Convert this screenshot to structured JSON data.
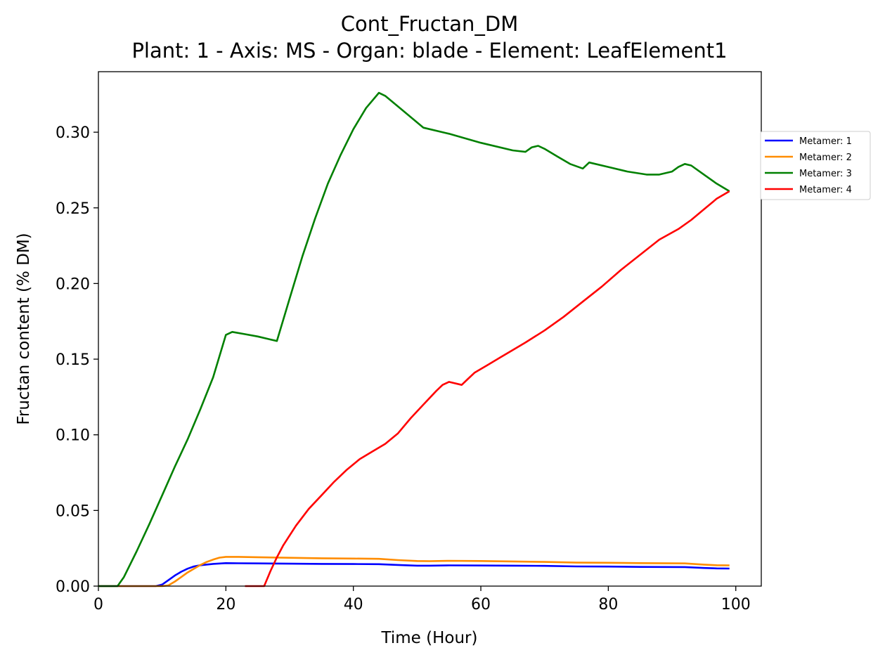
{
  "chart_data": {
    "type": "line",
    "title": "Cont_Fructan_DM",
    "subtitle": "Plant: 1 - Axis: MS - Organ: blade - Element: LeafElement1",
    "xlabel": "Time (Hour)",
    "ylabel": "Fructan content (% DM)",
    "xlim": [
      0,
      104
    ],
    "ylim": [
      0,
      0.34
    ],
    "xticks": [
      0,
      20,
      40,
      60,
      80,
      100
    ],
    "xtick_labels": [
      "0",
      "20",
      "40",
      "60",
      "80",
      "100"
    ],
    "yticks": [
      0.0,
      0.05,
      0.1,
      0.15,
      0.2,
      0.25,
      0.3
    ],
    "ytick_labels": [
      "0.00",
      "0.05",
      "0.10",
      "0.15",
      "0.20",
      "0.25",
      "0.30"
    ],
    "grid": false,
    "legend_position": "right, outside plot",
    "series": [
      {
        "name": "Metamer: 1",
        "color": "#0000ff",
        "points": [
          [
            0,
            0
          ],
          [
            9,
            0
          ],
          [
            10,
            0.001
          ],
          [
            11,
            0.004
          ],
          [
            12,
            0.007
          ],
          [
            13,
            0.0095
          ],
          [
            14,
            0.0115
          ],
          [
            15,
            0.013
          ],
          [
            16,
            0.0138
          ],
          [
            18,
            0.0147
          ],
          [
            20,
            0.0152
          ],
          [
            22,
            0.0151
          ],
          [
            25,
            0.015
          ],
          [
            30,
            0.0148
          ],
          [
            35,
            0.0147
          ],
          [
            40,
            0.0146
          ],
          [
            44,
            0.0145
          ],
          [
            47,
            0.014
          ],
          [
            50,
            0.0135
          ],
          [
            52,
            0.0135
          ],
          [
            55,
            0.0137
          ],
          [
            60,
            0.0136
          ],
          [
            65,
            0.0135
          ],
          [
            70,
            0.0134
          ],
          [
            75,
            0.013
          ],
          [
            80,
            0.0129
          ],
          [
            85,
            0.0127
          ],
          [
            92,
            0.0126
          ],
          [
            95,
            0.012
          ],
          [
            97,
            0.0117
          ],
          [
            99,
            0.0116
          ]
        ]
      },
      {
        "name": "Metamer: 2",
        "color": "#ff8c00",
        "points": [
          [
            0,
            0
          ],
          [
            10,
            0
          ],
          [
            11,
            0.0005
          ],
          [
            12,
            0.003
          ],
          [
            13,
            0.006
          ],
          [
            14,
            0.009
          ],
          [
            15,
            0.0115
          ],
          [
            16,
            0.014
          ],
          [
            17,
            0.016
          ],
          [
            18,
            0.0175
          ],
          [
            19,
            0.0188
          ],
          [
            20,
            0.0193
          ],
          [
            22,
            0.0193
          ],
          [
            25,
            0.0191
          ],
          [
            30,
            0.0187
          ],
          [
            35,
            0.0184
          ],
          [
            40,
            0.0182
          ],
          [
            44,
            0.018
          ],
          [
            47,
            0.0172
          ],
          [
            50,
            0.0166
          ],
          [
            52,
            0.0165
          ],
          [
            55,
            0.0167
          ],
          [
            60,
            0.0166
          ],
          [
            65,
            0.0163
          ],
          [
            70,
            0.016
          ],
          [
            75,
            0.0155
          ],
          [
            80,
            0.0154
          ],
          [
            85,
            0.0152
          ],
          [
            92,
            0.015
          ],
          [
            95,
            0.0142
          ],
          [
            97,
            0.0138
          ],
          [
            99,
            0.0137
          ]
        ]
      },
      {
        "name": "Metamer: 3",
        "color": "#008000",
        "points": [
          [
            0,
            0
          ],
          [
            3,
            0
          ],
          [
            4,
            0.006
          ],
          [
            6,
            0.023
          ],
          [
            8,
            0.041
          ],
          [
            10,
            0.06
          ],
          [
            12,
            0.079
          ],
          [
            14,
            0.097
          ],
          [
            16,
            0.117
          ],
          [
            18,
            0.138
          ],
          [
            20,
            0.166
          ],
          [
            21,
            0.168
          ],
          [
            23,
            0.1665
          ],
          [
            25,
            0.165
          ],
          [
            27,
            0.163
          ],
          [
            28,
            0.162
          ],
          [
            30,
            0.19
          ],
          [
            32,
            0.218
          ],
          [
            34,
            0.243
          ],
          [
            36,
            0.266
          ],
          [
            38,
            0.285
          ],
          [
            40,
            0.302
          ],
          [
            42,
            0.316
          ],
          [
            44,
            0.326
          ],
          [
            45,
            0.324
          ],
          [
            47,
            0.317
          ],
          [
            49,
            0.31
          ],
          [
            51,
            0.303
          ],
          [
            55,
            0.299
          ],
          [
            60,
            0.293
          ],
          [
            65,
            0.288
          ],
          [
            67,
            0.287
          ],
          [
            68,
            0.29
          ],
          [
            69,
            0.291
          ],
          [
            70,
            0.289
          ],
          [
            72,
            0.284
          ],
          [
            74,
            0.279
          ],
          [
            76,
            0.276
          ],
          [
            77,
            0.28
          ],
          [
            80,
            0.277
          ],
          [
            83,
            0.274
          ],
          [
            86,
            0.272
          ],
          [
            88,
            0.272
          ],
          [
            90,
            0.274
          ],
          [
            91,
            0.277
          ],
          [
            92,
            0.279
          ],
          [
            93,
            0.278
          ],
          [
            95,
            0.272
          ],
          [
            97,
            0.266
          ],
          [
            99,
            0.261
          ]
        ]
      },
      {
        "name": "Metamer: 4",
        "color": "#ff0000",
        "points": [
          [
            23,
            0
          ],
          [
            26,
            0
          ],
          [
            27,
            0.01
          ],
          [
            28,
            0.019
          ],
          [
            29,
            0.027
          ],
          [
            31,
            0.04
          ],
          [
            33,
            0.051
          ],
          [
            35,
            0.06
          ],
          [
            37,
            0.069
          ],
          [
            39,
            0.077
          ],
          [
            41,
            0.084
          ],
          [
            43,
            0.089
          ],
          [
            45,
            0.094
          ],
          [
            47,
            0.101
          ],
          [
            49,
            0.111
          ],
          [
            51,
            0.12
          ],
          [
            53,
            0.129
          ],
          [
            54,
            0.133
          ],
          [
            55,
            0.135
          ],
          [
            57,
            0.133
          ],
          [
            58,
            0.137
          ],
          [
            59,
            0.141
          ],
          [
            61,
            0.146
          ],
          [
            63,
            0.151
          ],
          [
            65,
            0.156
          ],
          [
            67,
            0.161
          ],
          [
            70,
            0.169
          ],
          [
            73,
            0.178
          ],
          [
            76,
            0.188
          ],
          [
            79,
            0.198
          ],
          [
            82,
            0.209
          ],
          [
            85,
            0.219
          ],
          [
            88,
            0.229
          ],
          [
            91,
            0.236
          ],
          [
            93,
            0.242
          ],
          [
            95,
            0.249
          ],
          [
            97,
            0.256
          ],
          [
            99,
            0.261
          ]
        ]
      }
    ]
  }
}
